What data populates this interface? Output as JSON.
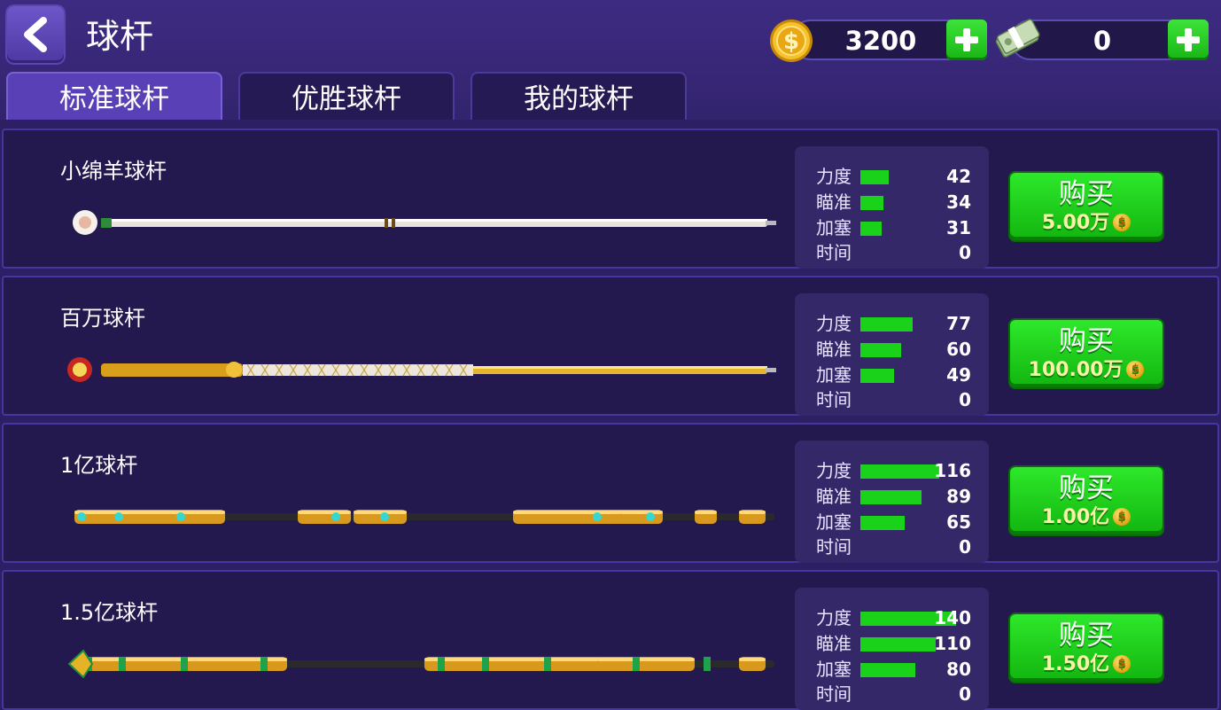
{
  "header": {
    "title": "球杆",
    "coins": "3200",
    "cash": "0"
  },
  "tabs": [
    {
      "label": "标准球杆",
      "active": true
    },
    {
      "label": "优胜球杆",
      "active": false
    },
    {
      "label": "我的球杆",
      "active": false
    }
  ],
  "stat_max": 140,
  "cues": [
    {
      "name": "小绵羊球杆",
      "style": "sheep",
      "stats": [
        {
          "label": "力度",
          "value": 42
        },
        {
          "label": "瞄准",
          "value": 34
        },
        {
          "label": "加塞",
          "value": 31
        },
        {
          "label": "时间",
          "value": 0
        }
      ],
      "buy_label": "购买",
      "price": "5.00万"
    },
    {
      "name": "百万球杆",
      "style": "million",
      "stats": [
        {
          "label": "力度",
          "value": 77
        },
        {
          "label": "瞄准",
          "value": 60
        },
        {
          "label": "加塞",
          "value": 49
        },
        {
          "label": "时间",
          "value": 0
        }
      ],
      "buy_label": "购买",
      "price": "100.00万"
    },
    {
      "name": "1亿球杆",
      "style": "gold-cyan",
      "stats": [
        {
          "label": "力度",
          "value": 116
        },
        {
          "label": "瞄准",
          "value": 89
        },
        {
          "label": "加塞",
          "value": 65
        },
        {
          "label": "时间",
          "value": 0
        }
      ],
      "buy_label": "购买",
      "price": "1.00亿"
    },
    {
      "name": "1.5亿球杆",
      "style": "gold-green",
      "stats": [
        {
          "label": "力度",
          "value": 140
        },
        {
          "label": "瞄准",
          "value": 110
        },
        {
          "label": "加塞",
          "value": 80
        },
        {
          "label": "时间",
          "value": 0
        }
      ],
      "buy_label": "购买",
      "price": "1.50亿"
    }
  ],
  "colors": {
    "background": "#2d1f63",
    "stat_bar": "#1bd21b",
    "buy_button": "#1ed01b",
    "price_text": "#f7f2a8"
  }
}
